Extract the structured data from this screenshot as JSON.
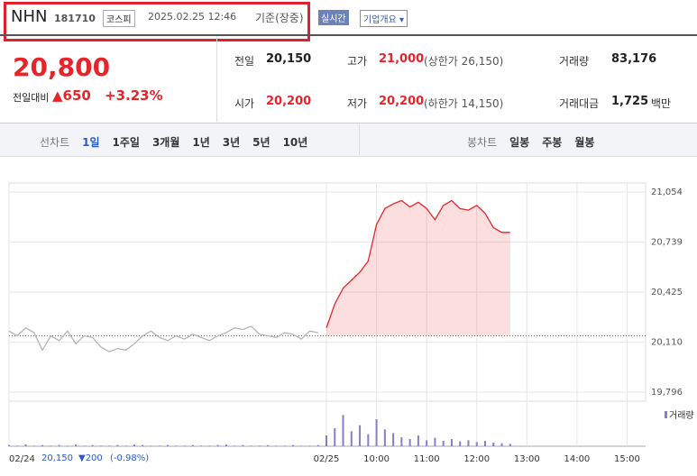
{
  "header": {
    "name": "NHN",
    "code": "181710",
    "market": "코스피",
    "datetime": "2025.02.25 12:46",
    "basis": "기준(장중)",
    "realtime": "실시간",
    "company": "기업개요 ▾"
  },
  "summary": {
    "price": "20,800",
    "change_label": "전일대비",
    "change": "▲650",
    "rate": "+3.23%",
    "rows": [
      [
        {
          "label": "전일",
          "value": "20,150"
        },
        {
          "label": "고가",
          "value": "21,000",
          "extra": "(상한가 26,150)"
        },
        {
          "label": "거래량",
          "value": "83,176"
        }
      ],
      [
        {
          "label": "시가",
          "value": "20,200"
        },
        {
          "label": "저가",
          "value": "20,200",
          "extra": "(하한가 14,150)"
        },
        {
          "label": "거래대금",
          "value": "1,725",
          "unit": "백만"
        }
      ]
    ]
  },
  "tabs": {
    "line_label": "선차트",
    "line": [
      "1일",
      "1주일",
      "3개월",
      "1년",
      "3년",
      "5년",
      "10년"
    ],
    "candle_label": "봉차트",
    "candle": [
      "일봉",
      "주봉",
      "월봉"
    ]
  },
  "prev_day": {
    "close": "20,150",
    "change": "▼200",
    "rate": "(-0.98%)"
  },
  "chart_data": {
    "type": "line",
    "categories": [
      "02/24",
      null,
      null,
      null,
      null,
      null,
      null,
      null,
      null,
      null,
      null,
      null,
      null,
      null,
      null,
      null,
      null,
      null,
      null,
      null,
      null,
      null,
      null,
      null,
      null,
      null,
      null,
      null,
      null,
      null,
      null,
      null,
      null,
      null,
      null,
      null,
      null,
      null,
      "02/25",
      null,
      null,
      null,
      null,
      null,
      "10:00",
      null,
      null,
      null,
      null,
      null,
      "11:00",
      null,
      null,
      null,
      null,
      null,
      "12:00",
      null,
      null,
      null,
      null,
      null,
      "13:00",
      null,
      null,
      null,
      null,
      null,
      "14:00",
      null,
      null,
      null,
      null,
      null,
      "15:00",
      null,
      null
    ],
    "series": [
      {
        "color": "#b4b4b4",
        "values": [
          20180,
          20150,
          20200,
          20170,
          20060,
          20150,
          20120,
          20180,
          20100,
          20150,
          20140,
          20080,
          20050,
          20070,
          20060,
          20100,
          20150,
          20180,
          20140,
          20120,
          20150,
          20130,
          20160,
          20140,
          20120,
          20150,
          20170,
          20200,
          20190,
          20210,
          20160,
          20150,
          20140,
          20170,
          20160,
          20130,
          20180,
          20170,
          null,
          null,
          null,
          null,
          null,
          null,
          null,
          null,
          null,
          null,
          null,
          null,
          null,
          null,
          null,
          null,
          null,
          null,
          null,
          null,
          null,
          null,
          null,
          null,
          null,
          null,
          null,
          null,
          null,
          null,
          null,
          null,
          null,
          null,
          null,
          null,
          null,
          null,
          null
        ]
      },
      {
        "color": "#e8242b",
        "values": [
          null,
          null,
          null,
          null,
          null,
          null,
          null,
          null,
          null,
          null,
          null,
          null,
          null,
          null,
          null,
          null,
          null,
          null,
          null,
          null,
          null,
          null,
          null,
          null,
          null,
          null,
          null,
          null,
          null,
          null,
          null,
          null,
          null,
          null,
          null,
          null,
          null,
          null,
          20200,
          20350,
          20450,
          20500,
          20550,
          20620,
          20850,
          20950,
          20980,
          21000,
          20960,
          20990,
          20950,
          20880,
          20970,
          21000,
          20950,
          20940,
          20970,
          20920,
          20830,
          20800,
          20800,
          null,
          null,
          null,
          null,
          null,
          null,
          null,
          null,
          null,
          null,
          null,
          null,
          null,
          null,
          null,
          null
        ]
      },
      {
        "name": "거래량",
        "color": "#8a7cc8",
        "axis": "y2",
        "values": [
          2,
          1,
          3,
          1,
          2,
          1,
          2,
          1,
          3,
          1,
          2,
          1,
          1,
          2,
          1,
          3,
          2,
          1,
          1,
          2,
          1,
          1,
          2,
          1,
          1,
          2,
          3,
          1,
          2,
          1,
          1,
          2,
          1,
          1,
          2,
          1,
          1,
          2,
          18,
          30,
          52,
          25,
          35,
          20,
          45,
          28,
          22,
          15,
          12,
          18,
          10,
          14,
          9,
          12,
          8,
          10,
          7,
          9,
          6,
          5,
          4,
          null,
          null,
          null,
          null,
          null,
          null,
          null,
          null,
          null,
          null,
          null,
          null,
          null,
          null,
          null,
          null
        ]
      }
    ],
    "reference_line": 20150,
    "ylim": [
      19796,
      21054
    ],
    "yticks": [
      {
        "value": 21054,
        "label": "21,054"
      },
      {
        "value": 20739,
        "label": "20,739"
      },
      {
        "value": 20425,
        "label": "20,425"
      },
      {
        "value": 20110,
        "label": "20,110"
      },
      {
        "value": 19796,
        "label": "19,796"
      }
    ],
    "y2lim": [
      0,
      60
    ],
    "grid": true
  }
}
